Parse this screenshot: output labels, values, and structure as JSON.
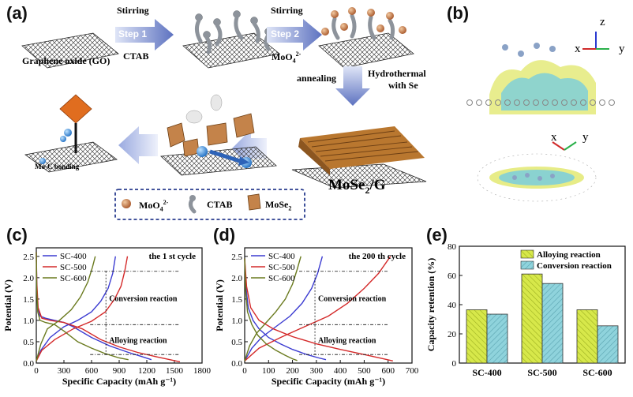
{
  "panels": {
    "a": "(a)",
    "b": "(b)",
    "c": "(c)",
    "d": "(d)",
    "e": "(e)"
  },
  "schematic": {
    "go_label": "Graphene oxide (GO)",
    "step1_above": "Stirring",
    "step1": "Step 1",
    "step1_below": "CTAB",
    "step2_above": "Stirring",
    "step2": "Step 2",
    "step2_below": "MoO",
    "step2_below_sup": "4",
    "step2_below_charge": "2-",
    "annealing": "annealing",
    "hydro_1": "Hydrothermal",
    "hydro_2": "with Se",
    "product": "MoSe",
    "product_sub": "2",
    "product_tail": "/G",
    "bonding": "Mo-C bonding",
    "legend_moo4": "MoO",
    "legend_moo4_sub": "4",
    "legend_moo4_charge": "2-",
    "legend_ctab": "CTAB",
    "legend_mose2": "MoSe",
    "legend_mose2_sub": "2",
    "colors": {
      "arrow": "#6b7fc4",
      "sphere": "#c97a3e",
      "sheet": "#c98a3a",
      "ctab": "#9aa0a8"
    }
  },
  "axes_b": {
    "top": [
      "z",
      "x",
      "y"
    ],
    "bottom": [
      "x",
      "y"
    ]
  },
  "chart_data": [
    {
      "id": "c",
      "type": "line",
      "annotation": "the 1 st cycle",
      "xlabel": "Specific Capacity (mAh g⁻¹)",
      "ylabel": "Potential (V)",
      "xlim": [
        0,
        1800
      ],
      "ylim": [
        0,
        2.7
      ],
      "xticks": [
        "0",
        "300",
        "600",
        "900",
        "1200",
        "1500",
        "1800"
      ],
      "yticks": [
        "0.0",
        "0.5",
        "1.0",
        "1.5",
        "2.0",
        "2.5"
      ],
      "labels": [
        "Conversion reaction",
        "Alloying reaction"
      ],
      "series": [
        {
          "name": "SC-400",
          "color": "#3b3bd1",
          "discharge": [
            [
              0,
              2.6
            ],
            [
              5,
              1.8
            ],
            [
              15,
              1.3
            ],
            [
              40,
              1.1
            ],
            [
              100,
              1.05
            ],
            [
              200,
              1.0
            ],
            [
              300,
              0.95
            ],
            [
              400,
              0.85
            ],
            [
              600,
              0.6
            ],
            [
              800,
              0.4
            ],
            [
              1000,
              0.25
            ],
            [
              1150,
              0.15
            ],
            [
              1250,
              0.08
            ]
          ],
          "charge": [
            [
              0,
              0.05
            ],
            [
              50,
              0.3
            ],
            [
              150,
              0.6
            ],
            [
              300,
              0.85
            ],
            [
              450,
              1.0
            ],
            [
              600,
              1.2
            ],
            [
              700,
              1.45
            ],
            [
              780,
              1.75
            ],
            [
              830,
              2.1
            ],
            [
              860,
              2.5
            ]
          ]
        },
        {
          "name": "SC-500",
          "color": "#d42a2a",
          "discharge": [
            [
              0,
              2.6
            ],
            [
              5,
              1.9
            ],
            [
              20,
              1.3
            ],
            [
              60,
              1.05
            ],
            [
              150,
              1.0
            ],
            [
              300,
              0.95
            ],
            [
              500,
              0.8
            ],
            [
              700,
              0.55
            ],
            [
              900,
              0.38
            ],
            [
              1100,
              0.25
            ],
            [
              1300,
              0.15
            ],
            [
              1450,
              0.08
            ],
            [
              1560,
              0.03
            ]
          ],
          "charge": [
            [
              0,
              0.05
            ],
            [
              60,
              0.3
            ],
            [
              200,
              0.55
            ],
            [
              400,
              0.8
            ],
            [
              600,
              0.98
            ],
            [
              750,
              1.2
            ],
            [
              850,
              1.5
            ],
            [
              920,
              1.8
            ],
            [
              960,
              2.15
            ],
            [
              990,
              2.5
            ]
          ]
        },
        {
          "name": "SC-600",
          "color": "#6a7a1e",
          "discharge": [
            [
              0,
              2.6
            ],
            [
              5,
              1.7
            ],
            [
              15,
              1.2
            ],
            [
              40,
              1.0
            ],
            [
              100,
              0.95
            ],
            [
              200,
              0.9
            ],
            [
              300,
              0.75
            ],
            [
              450,
              0.5
            ],
            [
              600,
              0.35
            ],
            [
              750,
              0.22
            ],
            [
              900,
              0.12
            ],
            [
              1000,
              0.08
            ]
          ],
          "charge": [
            [
              0,
              0.05
            ],
            [
              50,
              0.45
            ],
            [
              120,
              0.8
            ],
            [
              250,
              1.0
            ],
            [
              380,
              1.25
            ],
            [
              480,
              1.55
            ],
            [
              560,
              1.9
            ],
            [
              610,
              2.25
            ],
            [
              640,
              2.5
            ]
          ]
        }
      ]
    },
    {
      "id": "d",
      "type": "line",
      "annotation": "the 200 th cycle",
      "xlabel": "Specific Capacity (mAh g⁻¹)",
      "ylabel": "Potential (V)",
      "xlim": [
        0,
        700
      ],
      "ylim": [
        0,
        2.7
      ],
      "xticks": [
        "0",
        "100",
        "200",
        "300",
        "400",
        "500",
        "600",
        "700"
      ],
      "yticks": [
        "0.0",
        "0.5",
        "1.0",
        "1.5",
        "2.0",
        "2.5"
      ],
      "labels": [
        "Conversion reaction",
        "Alloying reaction"
      ],
      "series": [
        {
          "name": "SC-400",
          "color": "#3b3bd1",
          "discharge": [
            [
              0,
              2.45
            ],
            [
              5,
              1.8
            ],
            [
              15,
              1.3
            ],
            [
              35,
              1.0
            ],
            [
              60,
              0.8
            ],
            [
              100,
              0.6
            ],
            [
              150,
              0.45
            ],
            [
              200,
              0.32
            ],
            [
              260,
              0.2
            ],
            [
              310,
              0.12
            ],
            [
              340,
              0.08
            ]
          ],
          "charge": [
            [
              0,
              0.05
            ],
            [
              30,
              0.35
            ],
            [
              70,
              0.6
            ],
            [
              130,
              0.85
            ],
            [
              190,
              1.1
            ],
            [
              240,
              1.4
            ],
            [
              280,
              1.75
            ],
            [
              305,
              2.1
            ],
            [
              325,
              2.5
            ]
          ]
        },
        {
          "name": "SC-500",
          "color": "#d42a2a",
          "discharge": [
            [
              0,
              2.45
            ],
            [
              8,
              1.8
            ],
            [
              25,
              1.3
            ],
            [
              60,
              1.0
            ],
            [
              120,
              0.8
            ],
            [
              200,
              0.62
            ],
            [
              300,
              0.45
            ],
            [
              400,
              0.32
            ],
            [
              500,
              0.2
            ],
            [
              580,
              0.1
            ],
            [
              620,
              0.05
            ]
          ],
          "charge": [
            [
              0,
              0.05
            ],
            [
              60,
              0.35
            ],
            [
              150,
              0.6
            ],
            [
              250,
              0.85
            ],
            [
              350,
              1.1
            ],
            [
              430,
              1.4
            ],
            [
              500,
              1.75
            ],
            [
              560,
              2.1
            ],
            [
              610,
              2.5
            ]
          ]
        },
        {
          "name": "SC-600",
          "color": "#6a7a1e",
          "discharge": [
            [
              0,
              2.45
            ],
            [
              4,
              1.7
            ],
            [
              12,
              1.2
            ],
            [
              30,
              0.9
            ],
            [
              55,
              0.65
            ],
            [
              90,
              0.45
            ],
            [
              130,
              0.3
            ],
            [
              170,
              0.18
            ],
            [
              200,
              0.1
            ],
            [
              220,
              0.06
            ]
          ],
          "charge": [
            [
              0,
              0.05
            ],
            [
              20,
              0.4
            ],
            [
              50,
              0.7
            ],
            [
              90,
              0.95
            ],
            [
              130,
              1.2
            ],
            [
              170,
              1.5
            ],
            [
              200,
              1.85
            ],
            [
              220,
              2.2
            ],
            [
              235,
              2.5
            ]
          ]
        }
      ]
    },
    {
      "id": "e",
      "type": "bar",
      "ylabel": "Capacity retention (%)",
      "ylim": [
        0,
        80
      ],
      "yticks": [
        "0",
        "20",
        "40",
        "60",
        "80"
      ],
      "categories": [
        "SC-400",
        "SC-500",
        "SC-600"
      ],
      "series": [
        {
          "name": "Alloying reaction",
          "color": "#d7e84a",
          "values": [
            36.5,
            61,
            36.5
          ]
        },
        {
          "name": "Conversion reaction",
          "color": "#8fd3dc",
          "values": [
            33.5,
            54.5,
            25.5
          ]
        }
      ]
    }
  ]
}
